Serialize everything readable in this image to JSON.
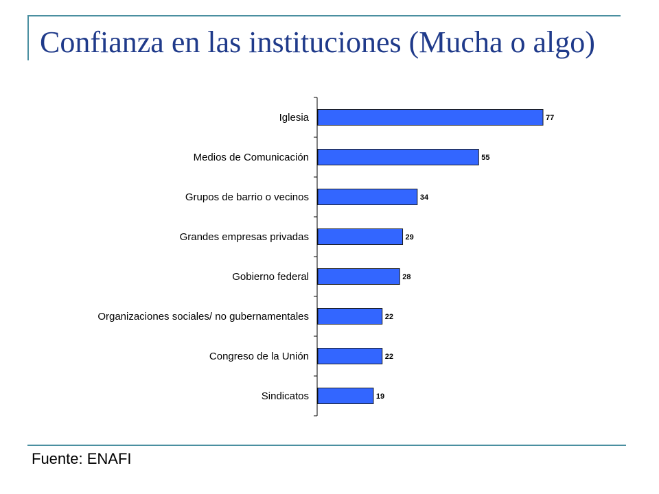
{
  "title": "Confianza en las instituciones (Mucha o algo)",
  "source": "Fuente: ENAFI",
  "colors": {
    "bar": "#3366ff",
    "bar_border": "#1a1a1a",
    "accent_line": "#4a8fa0",
    "title": "#1f3a8a"
  },
  "chart_data": {
    "type": "bar",
    "orientation": "horizontal",
    "categories": [
      "Iglesia",
      "Medios de Comunicación",
      "Grupos de barrio o vecinos",
      "Grandes empresas privadas",
      "Gobierno federal",
      "Organizaciones sociales/ no gubernamentales",
      "Congreso de la Unión",
      "Sindicatos"
    ],
    "values": [
      77,
      55,
      34,
      29,
      28,
      22,
      22,
      19
    ],
    "data_labels": [
      "77",
      "55",
      "34",
      "29",
      "28",
      "22",
      "22",
      "19"
    ],
    "title": "",
    "xlabel": "",
    "ylabel": "",
    "xlim": [
      0,
      100
    ],
    "grid": false,
    "legend": "none"
  }
}
